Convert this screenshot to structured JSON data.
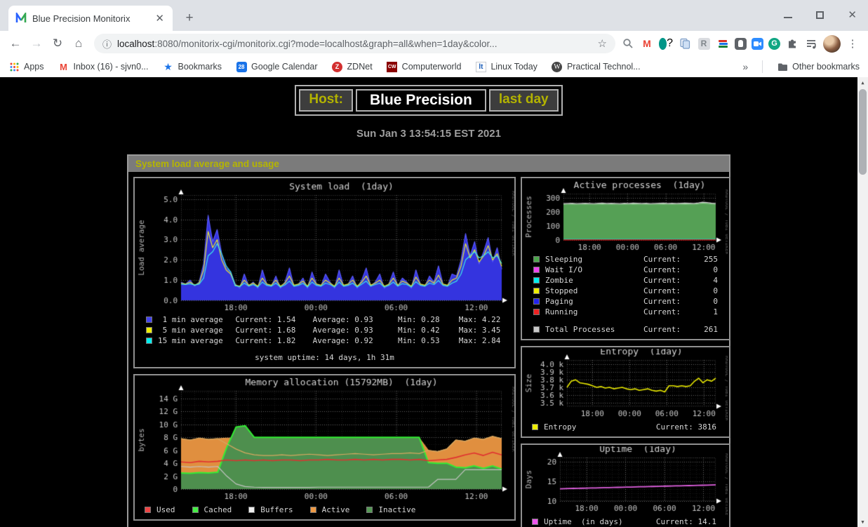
{
  "browser": {
    "tab_title": "Blue Precision Monitorix",
    "new_tab_label": "+",
    "url_host": "localhost",
    "url_rest": ":8080/monitorix-cgi/monitorix.cgi?mode=localhost&graph=all&when=1day&color...",
    "bookmarks": [
      {
        "icon": "apps-grid",
        "label": "Apps"
      },
      {
        "icon": "gmail",
        "label": "Inbox (16) - sjvn0..."
      },
      {
        "icon": "star-blue",
        "label": "Bookmarks"
      },
      {
        "icon": "google-calendar",
        "label": "Google Calendar"
      },
      {
        "icon": "zdnet",
        "label": "ZDNet"
      },
      {
        "icon": "computerworld",
        "label": "Computerworld"
      },
      {
        "icon": "linux-today",
        "label": "Linux Today"
      },
      {
        "icon": "wordpress",
        "label": "Practical Technol..."
      }
    ],
    "other_bookmarks_label": "Other bookmarks",
    "extension_icons": [
      "search",
      "gmail",
      "google-voice",
      "copy-pages",
      "rakuten",
      "books",
      "pocket",
      "zoom",
      "grammarly",
      "extensions-puzzle",
      "playlist",
      "profile-avatar",
      "menu-kebab"
    ]
  },
  "page": {
    "host_label": "Host:",
    "host_name": "Blue Precision",
    "period": "last day",
    "date": "Sun Jan 3 13:54:15 EST 2021",
    "section_title": "System load average and usage"
  },
  "chart_data": {
    "load": {
      "type": "area",
      "title": "System load  (1day)",
      "ylabel": "Load average",
      "ylim": [
        0,
        5.2
      ],
      "yticks": [
        [
          0,
          "0.0"
        ],
        [
          1,
          "1.0"
        ],
        [
          2,
          "2.0"
        ],
        [
          3,
          "3.0"
        ],
        [
          4,
          "4.0"
        ],
        [
          5,
          "5.0"
        ]
      ],
      "yminor": 0.5,
      "xticks": [
        [
          0.171,
          "18:00"
        ],
        [
          0.421,
          "00:00"
        ],
        [
          0.671,
          "06:00"
        ],
        [
          0.921,
          "12:00"
        ]
      ],
      "watermark": "RRDTOOL / TOBI OETIKER",
      "grid": true,
      "legend_position": "bottom",
      "series": [
        {
          "name": "1 min average",
          "draw": "area",
          "color": "#5a5aff",
          "fill": "#3434df",
          "values": [
            0.9,
            0.8,
            1.0,
            0.7,
            0.9,
            1.8,
            4.2,
            2.9,
            3.5,
            2.3,
            1.6,
            1.4,
            0.8,
            0.6,
            1.3,
            0.7,
            0.9,
            0.6,
            1.5,
            0.8,
            0.7,
            1.2,
            0.6,
            0.9,
            1.6,
            0.7,
            0.8,
            1.1,
            0.6,
            1.4,
            0.8,
            0.7,
            1.3,
            0.9,
            0.6,
            1.5,
            0.7,
            0.8,
            1.2,
            0.6,
            1.0,
            1.6,
            0.7,
            0.9,
            1.3,
            0.6,
            0.8,
            1.4,
            0.7,
            1.1,
            0.9,
            0.6,
            1.5,
            0.8,
            0.7,
            1.2,
            0.9,
            1.7,
            0.8,
            0.7,
            1.3,
            1.2,
            2.0,
            3.3,
            2.2,
            2.9,
            1.8,
            2.4,
            3.1,
            1.9,
            2.6,
            1.54
          ]
        },
        {
          "name": "5 min average",
          "draw": "line",
          "color": "#e8e832",
          "values": [
            0.85,
            0.8,
            0.9,
            0.75,
            0.85,
            1.5,
            3.4,
            2.6,
            3.0,
            2.0,
            1.5,
            1.3,
            0.75,
            0.7,
            1.0,
            0.75,
            0.85,
            0.7,
            1.1,
            0.8,
            0.75,
            1.0,
            0.7,
            0.85,
            1.2,
            0.75,
            0.8,
            0.95,
            0.7,
            1.1,
            0.8,
            0.75,
            1.0,
            0.85,
            0.7,
            1.1,
            0.75,
            0.8,
            1.0,
            0.7,
            0.9,
            1.2,
            0.75,
            0.85,
            1.0,
            0.7,
            0.8,
            1.1,
            0.75,
            0.95,
            0.85,
            0.7,
            1.15,
            0.8,
            0.75,
            1.0,
            0.85,
            1.25,
            0.8,
            0.75,
            1.0,
            1.1,
            1.7,
            2.8,
            2.1,
            2.5,
            1.9,
            2.2,
            2.7,
            2.0,
            2.3,
            1.68
          ]
        },
        {
          "name": "15 min average",
          "draw": "line",
          "color": "#3fe8e8",
          "values": [
            0.8,
            0.78,
            0.82,
            0.76,
            0.8,
            1.1,
            2.2,
            2.4,
            2.8,
            2.3,
            1.7,
            1.4,
            0.72,
            0.68,
            0.85,
            0.7,
            0.78,
            0.66,
            0.9,
            0.74,
            0.7,
            0.85,
            0.66,
            0.76,
            0.95,
            0.7,
            0.74,
            0.84,
            0.66,
            0.9,
            0.74,
            0.7,
            0.85,
            0.78,
            0.66,
            0.9,
            0.7,
            0.74,
            0.85,
            0.66,
            0.8,
            0.95,
            0.7,
            0.78,
            0.85,
            0.66,
            0.74,
            0.9,
            0.7,
            0.82,
            0.78,
            0.66,
            0.92,
            0.74,
            0.7,
            0.85,
            0.78,
            0.98,
            0.74,
            0.7,
            0.85,
            0.95,
            1.3,
            2.0,
            2.2,
            2.4,
            2.1,
            2.2,
            2.4,
            2.1,
            2.2,
            1.82
          ]
        }
      ],
      "legend": {
        "rows": [
          {
            "color": "#4444ee",
            "label": " 1 min average",
            "stats": [
              "Current: 1.54",
              "Average: 0.93",
              "Min: 0.28",
              "Max: 4.22"
            ]
          },
          {
            "color": "#eeee00",
            "label": " 5 min average",
            "stats": [
              "Current: 1.68",
              "Average: 0.93",
              "Min: 0.42",
              "Max: 3.45"
            ]
          },
          {
            "color": "#00eeee",
            "label": "15 min average",
            "stats": [
              "Current: 1.82",
              "Average: 0.92",
              "Min: 0.53",
              "Max: 2.84"
            ]
          }
        ],
        "footer": "system uptime: 14 days, 1h 31m"
      }
    },
    "processes": {
      "type": "area",
      "title": "Active processes  (1day)",
      "ylabel": "Processes",
      "ylim": [
        0,
        330
      ],
      "yticks": [
        [
          0,
          "0"
        ],
        [
          100,
          "100"
        ],
        [
          200,
          "200"
        ],
        [
          300,
          "300"
        ]
      ],
      "yminor": 50,
      "xticks": [
        [
          0.171,
          "18:00"
        ],
        [
          0.421,
          "00:00"
        ],
        [
          0.671,
          "06:00"
        ],
        [
          0.921,
          "12:00"
        ]
      ],
      "watermark": "RRDTOOL / TOBI OETIKER",
      "grid": true,
      "series": [
        {
          "name": "Sleeping",
          "draw": "area",
          "color": "#8fcf8f",
          "fill": "#55a055",
          "values": [
            253,
            255,
            256,
            254,
            255,
            256,
            255,
            254,
            256,
            257,
            255,
            256,
            255,
            254,
            256,
            255,
            257,
            256,
            255,
            256,
            254,
            255,
            256,
            257,
            255,
            256,
            255,
            256,
            257,
            256,
            255,
            258,
            263,
            261,
            257,
            255
          ]
        },
        {
          "name": "Total Processes",
          "draw": "line",
          "color": "#cfcfcf",
          "values": [
            259,
            261,
            262,
            260,
            261,
            262,
            261,
            260,
            262,
            263,
            261,
            262,
            261,
            260,
            262,
            261,
            263,
            262,
            261,
            262,
            260,
            261,
            262,
            263,
            261,
            262,
            261,
            262,
            263,
            262,
            261,
            264,
            269,
            267,
            263,
            261
          ]
        },
        {
          "name": "Zombie",
          "draw": "line",
          "color": "#00dddd",
          "values": 4
        },
        {
          "name": "Running",
          "draw": "line",
          "color": "#dd0000",
          "values": 1
        }
      ],
      "legend": {
        "rows": [
          {
            "color": "#4ca64c",
            "label": "Sleeping",
            "current": "255"
          },
          {
            "color": "#ee44ee",
            "label": "Wait I/O",
            "current": "0"
          },
          {
            "color": "#00eeee",
            "label": "Zombie",
            "current": "4"
          },
          {
            "color": "#eeee00",
            "label": "Stopped",
            "current": "0"
          },
          {
            "color": "#2222ee",
            "label": "Paging",
            "current": "0"
          },
          {
            "color": "#ee2222",
            "label": "Running",
            "current": "1"
          }
        ],
        "total": {
          "color": "#c8c8c8",
          "label": "Total Processes",
          "current": "261"
        }
      }
    },
    "memory": {
      "type": "area",
      "title": "Memory allocation (15792MB)  (1day)",
      "ylabel": "bytes",
      "ylim": [
        0,
        15.2
      ],
      "yticks": [
        [
          0,
          "0"
        ],
        [
          2,
          "2 G"
        ],
        [
          4,
          "4 G"
        ],
        [
          6,
          "6 G"
        ],
        [
          8,
          "8 G"
        ],
        [
          10,
          "10 G"
        ],
        [
          12,
          "12 G"
        ],
        [
          14,
          "14 G"
        ]
      ],
      "yminor": 1,
      "xticks": [
        [
          0.171,
          "18:00"
        ],
        [
          0.421,
          "00:00"
        ],
        [
          0.671,
          "06:00"
        ],
        [
          0.921,
          "12:00"
        ]
      ],
      "watermark": "RRDTOOL / TOBI OETIKER",
      "grid": true,
      "series": [
        {
          "name": "Active",
          "draw": "area",
          "color": "#e8a050",
          "fill": "#e08f3f",
          "values": [
            7.8,
            7.6,
            7.9,
            7.7,
            7.8,
            7.9,
            7.9,
            7.9,
            7.9,
            7.9,
            7.9,
            7.9,
            7.9,
            7.9,
            7.9,
            7.9,
            7.9,
            7.9,
            7.9,
            7.9,
            7.9,
            7.9,
            7.9,
            7.9,
            7.9,
            7.9,
            7.9,
            6.0,
            5.8,
            6.2,
            7.6,
            7.4,
            7.9,
            7.7,
            8.1,
            7.8
          ]
        },
        {
          "name": "Inactive",
          "draw": "area",
          "color": "#33ee33",
          "fill": "#4e8f4e",
          "lw": 2,
          "values": [
            2.5,
            2.45,
            2.55,
            2.5,
            2.6,
            6.5,
            9.6,
            9.8,
            8.0,
            8.0,
            8.0,
            8.0,
            8.0,
            8.0,
            8.0,
            8.0,
            8.0,
            8.0,
            8.0,
            8.0,
            8.0,
            8.0,
            8.0,
            8.0,
            8.0,
            8.0,
            8.0,
            4.1,
            4.0,
            4.0,
            3.4,
            3.3,
            3.6,
            3.2,
            3.6,
            3.1
          ]
        },
        {
          "name": "Active edge",
          "draw": "line",
          "color": "#d8a860",
          "values": [
            7.8,
            7.6,
            7.9,
            7.7,
            7.8,
            7.0,
            6.2,
            5.6,
            5.3,
            5.2,
            5.2,
            5.3,
            5.2,
            5.3,
            5.4,
            5.3,
            5.2,
            5.3,
            5.4,
            5.5,
            5.4,
            5.3,
            5.4,
            5.5,
            5.5,
            5.6,
            5.5,
            6.0,
            5.8,
            6.2,
            7.6,
            7.4,
            7.9,
            7.7,
            8.2,
            7.8
          ]
        },
        {
          "name": "Buffers",
          "draw": "line",
          "color": "#c4c4c4",
          "values": [
            3.5,
            3.4,
            3.5,
            3.4,
            3.5,
            2.0,
            0.8,
            0.4,
            0.3,
            0.25,
            0.25,
            0.25,
            0.25,
            0.25,
            0.25,
            0.3,
            0.3,
            0.3,
            0.3,
            0.3,
            0.3,
            0.3,
            0.3,
            0.3,
            0.3,
            0.3,
            0.3,
            0.3,
            1.5,
            1.5,
            1.5,
            3.0,
            3.0,
            3.0,
            3.0,
            3.0
          ]
        },
        {
          "name": "Used",
          "draw": "line",
          "color": "#e03030",
          "lw": 1.6,
          "values": [
            4.2,
            4.1,
            4.3,
            4.2,
            4.3,
            4.5,
            4.4,
            4.5,
            4.4,
            4.5,
            4.4,
            4.5,
            4.5,
            4.4,
            4.5,
            4.5,
            4.6,
            4.5,
            4.5,
            4.6,
            4.5,
            4.6,
            4.5,
            4.6,
            4.6,
            4.5,
            4.6,
            4.4,
            4.5,
            4.6,
            4.9,
            5.3,
            5.6,
            5.2,
            5.7,
            5.3
          ]
        }
      ],
      "legend": {
        "items": [
          {
            "color": "#ee4444",
            "label": "Used"
          },
          {
            "color": "#44ee44",
            "label": "Cached"
          },
          {
            "color": "#eeeeee",
            "label": "Buffers"
          },
          {
            "color": "#ee9944",
            "label": "Active"
          },
          {
            "color": "#559955",
            "label": "Inactive"
          }
        ]
      }
    },
    "entropy": {
      "type": "line",
      "title": "Entropy  (1day)",
      "ylabel": "Size",
      "ylim": [
        3.45,
        4.06
      ],
      "yticks": [
        [
          3.5,
          "3.5 k"
        ],
        [
          3.6,
          "3.6 k"
        ],
        [
          3.7,
          "3.7 k"
        ],
        [
          3.8,
          "3.8 k"
        ],
        [
          3.9,
          "3.9 k"
        ],
        [
          4.0,
          "4.0 k"
        ]
      ],
      "yminor": 0.05,
      "xticks": [
        [
          0.171,
          "18:00"
        ],
        [
          0.421,
          "00:00"
        ],
        [
          0.671,
          "06:00"
        ],
        [
          0.921,
          "12:00"
        ]
      ],
      "watermark": "RRDTOOL / TOBI OETIKER",
      "grid": true,
      "series": [
        {
          "name": "Entropy",
          "draw": "line",
          "color": "#e8e800",
          "lw": 1.6,
          "values": [
            3.7,
            3.78,
            3.8,
            3.76,
            3.75,
            3.74,
            3.72,
            3.7,
            3.71,
            3.69,
            3.7,
            3.68,
            3.69,
            3.7,
            3.68,
            3.67,
            3.68,
            3.66,
            3.67,
            3.68,
            3.66,
            3.65,
            3.66,
            3.64,
            3.72,
            3.72,
            3.71,
            3.72,
            3.71,
            3.72,
            3.78,
            3.82,
            3.76,
            3.8,
            3.78,
            3.82
          ]
        }
      ],
      "legend": {
        "rows": [
          {
            "color": "#eeee00",
            "label": "Entropy",
            "right": "Current: 3816"
          }
        ]
      }
    },
    "uptime": {
      "type": "line",
      "title": "Uptime  (1day)",
      "ylabel": "Days",
      "ylim": [
        10,
        21
      ],
      "yticks": [
        [
          10,
          "10"
        ],
        [
          15,
          "15"
        ],
        [
          20,
          "20"
        ]
      ],
      "yminor": 1,
      "xticks": [
        [
          0.171,
          "18:00"
        ],
        [
          0.421,
          "00:00"
        ],
        [
          0.671,
          "06:00"
        ],
        [
          0.921,
          "12:00"
        ]
      ],
      "watermark": "RRDTOOL / TOBI OETIKER",
      "grid": true,
      "series": [
        {
          "name": "Uptime",
          "draw": "line",
          "color": "#e060e0",
          "lw": 1.8,
          "values": [
            13.1,
            13.13,
            13.16,
            13.19,
            13.21,
            13.24,
            13.27,
            13.3,
            13.32,
            13.35,
            13.38,
            13.41,
            13.43,
            13.46,
            13.49,
            13.52,
            13.54,
            13.57,
            13.6,
            13.63,
            13.66,
            13.68,
            13.71,
            13.74,
            13.77,
            13.79,
            13.82,
            13.85,
            13.88,
            13.9,
            13.93,
            13.96,
            13.99,
            14.02,
            14.05,
            14.1
          ]
        }
      ],
      "legend": {
        "rows": [
          {
            "color": "#ee55ee",
            "label": "Uptime  (in days)",
            "right": "Current: 14.1"
          }
        ]
      }
    }
  }
}
